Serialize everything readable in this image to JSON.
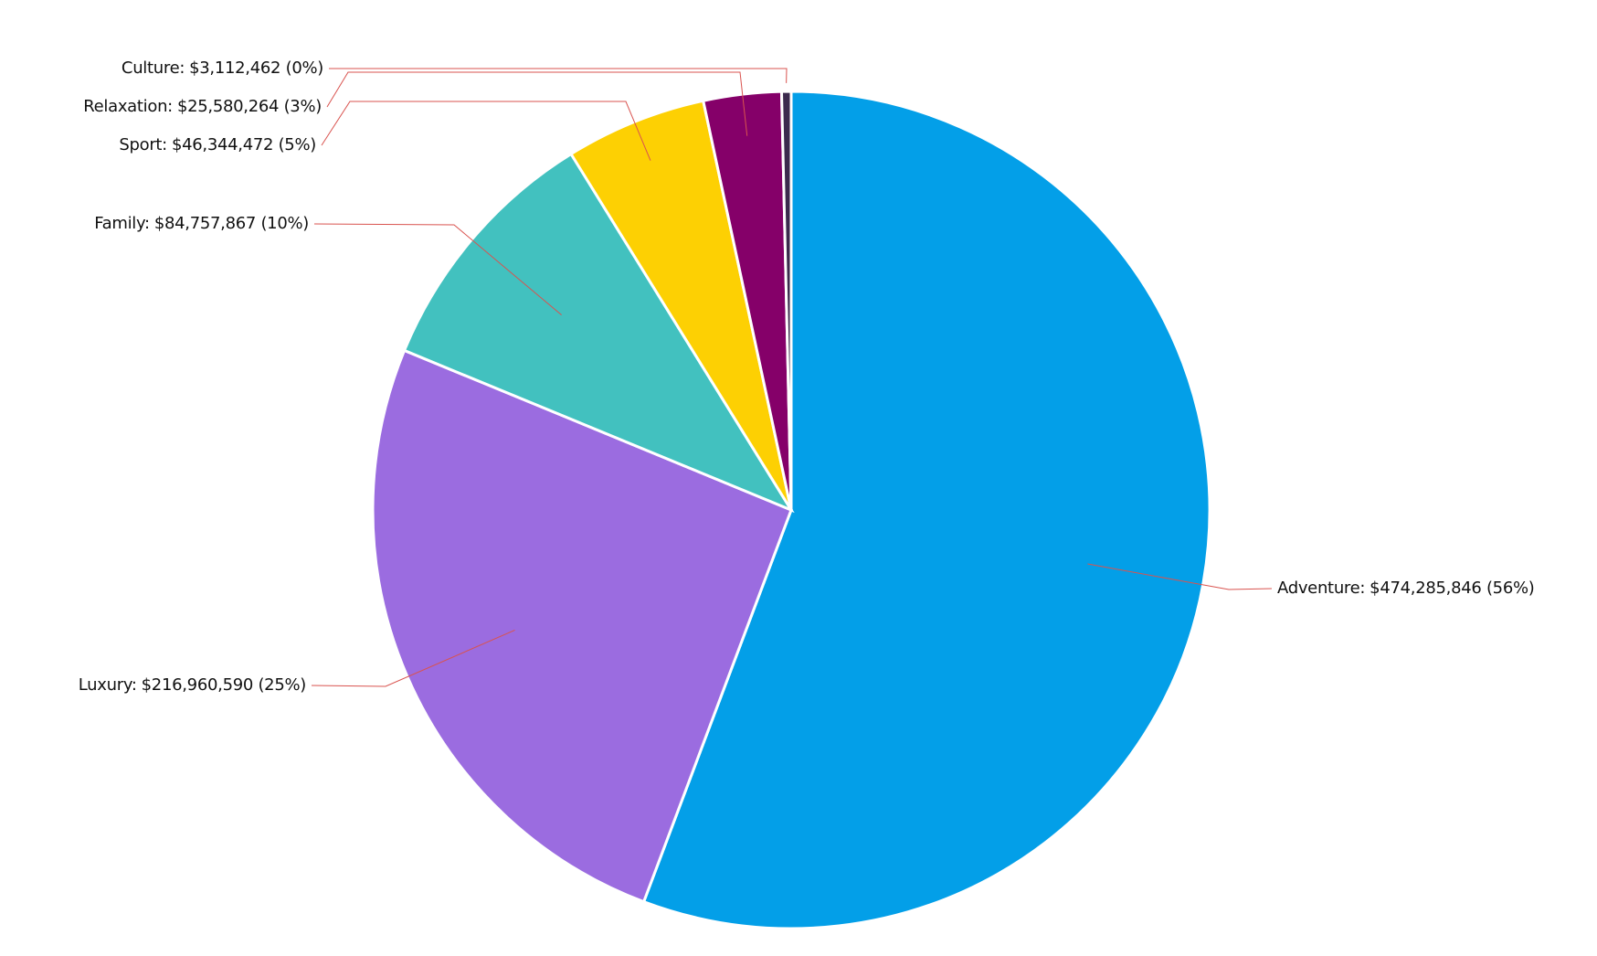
{
  "chart_data": {
    "type": "pie",
    "categories": [
      "Adventure:",
      "Luxury:",
      "Family:",
      "Sport:",
      "Relaxation:",
      "Culture:"
    ],
    "values": [
      474285846,
      216960590,
      84757867,
      46344472,
      25580264,
      3112462
    ],
    "value_labels": [
      "$474,285,846 (56%)",
      "$216,960,590 (25%)",
      "$84,757,867 (10%)",
      "$46,344,472 (5%)",
      "$25,580,264 (3%)",
      "$3,112,462 (0%)"
    ],
    "colors": [
      "#039fe8",
      "#9b6ce0",
      "#42c1bf",
      "#fdd003",
      "#850069",
      "#3b2a4d"
    ],
    "leader_color": "#d9534f"
  }
}
